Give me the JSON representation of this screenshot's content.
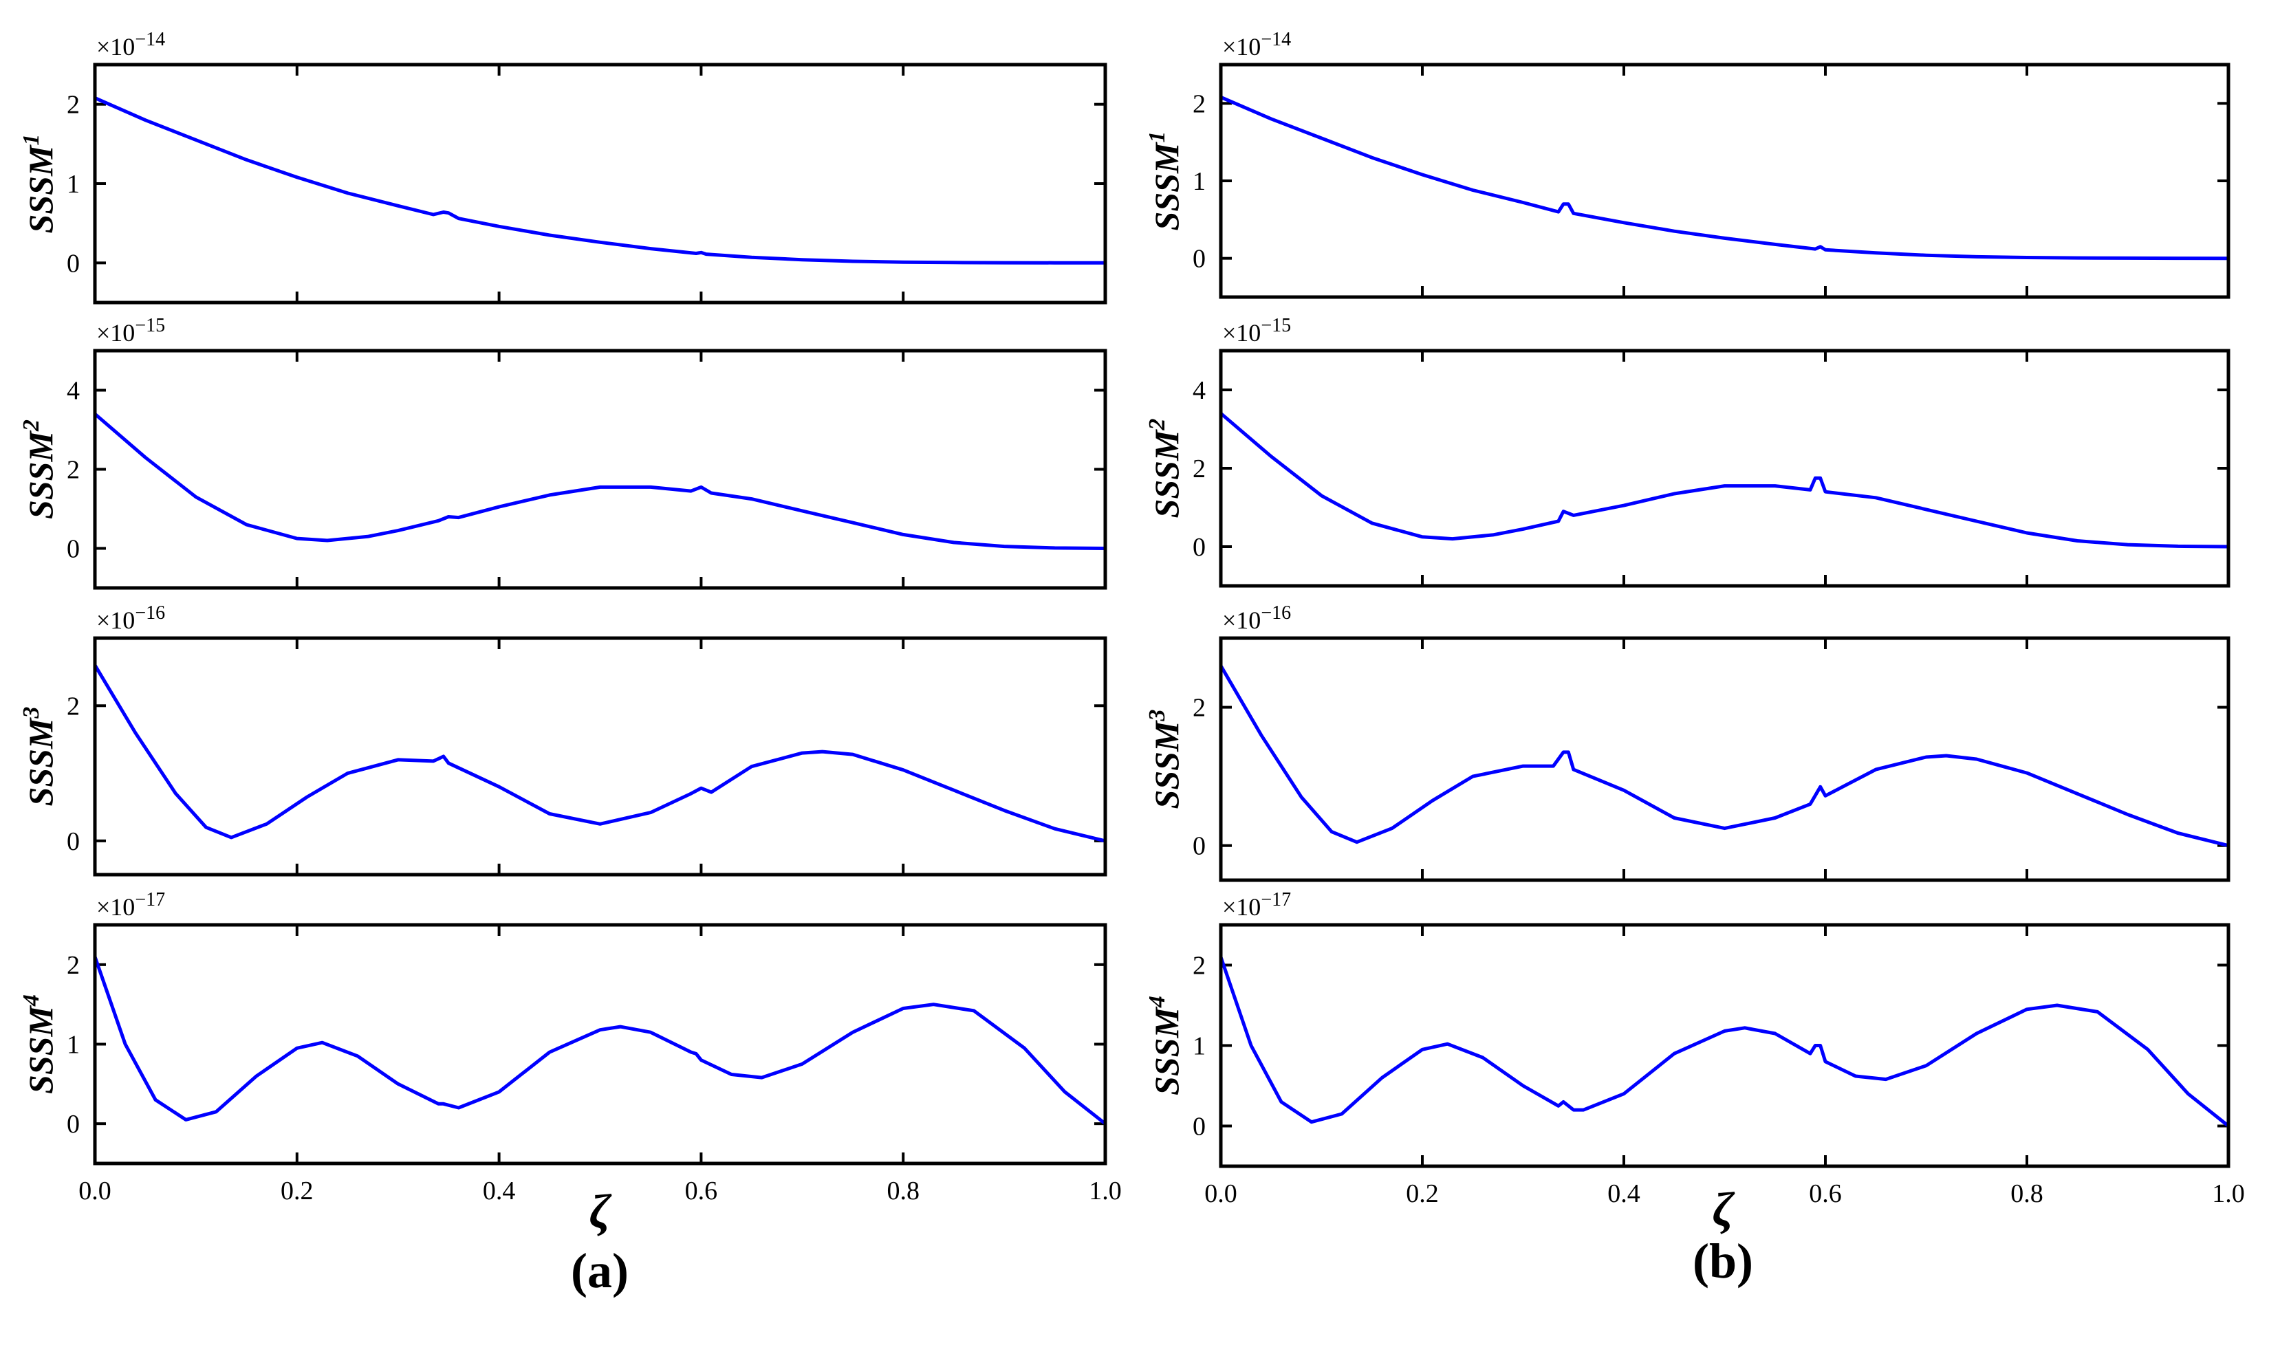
{
  "chart_data": [
    {
      "panel": "a",
      "panel_label": "(a)",
      "xlabel": "ζ",
      "subplots": [
        {
          "type": "line",
          "ylabel": "SSSM",
          "ylabel_sup": "1",
          "exponent": "×10",
          "exponent_sup": "−14",
          "xlim": [
            0,
            1
          ],
          "ylim": [
            -0.5,
            2.5
          ],
          "yticks": [
            0,
            1,
            2
          ],
          "x": [
            0,
            0.05,
            0.1,
            0.15,
            0.2,
            0.25,
            0.3,
            0.335,
            0.345,
            0.35,
            0.36,
            0.4,
            0.45,
            0.5,
            0.55,
            0.595,
            0.6,
            0.605,
            0.65,
            0.7,
            0.75,
            0.8,
            0.85,
            0.9,
            0.95,
            1.0
          ],
          "y": [
            2.08,
            1.8,
            1.55,
            1.3,
            1.08,
            0.88,
            0.72,
            0.61,
            0.64,
            0.63,
            0.56,
            0.46,
            0.35,
            0.26,
            0.18,
            0.12,
            0.13,
            0.11,
            0.07,
            0.04,
            0.02,
            0.01,
            0.005,
            0.002,
            0.001,
            0
          ]
        },
        {
          "type": "line",
          "ylabel": "SSSM",
          "ylabel_sup": "2",
          "exponent": "×10",
          "exponent_sup": "−15",
          "xlim": [
            0,
            1
          ],
          "ylim": [
            -1,
            5
          ],
          "yticks": [
            0,
            2,
            4
          ],
          "x": [
            0,
            0.05,
            0.1,
            0.15,
            0.2,
            0.23,
            0.27,
            0.3,
            0.34,
            0.35,
            0.36,
            0.4,
            0.45,
            0.5,
            0.55,
            0.59,
            0.6,
            0.61,
            0.65,
            0.7,
            0.75,
            0.8,
            0.85,
            0.9,
            0.95,
            1.0
          ],
          "y": [
            3.4,
            2.3,
            1.3,
            0.6,
            0.25,
            0.2,
            0.3,
            0.45,
            0.7,
            0.8,
            0.78,
            1.05,
            1.35,
            1.55,
            1.55,
            1.45,
            1.55,
            1.4,
            1.25,
            0.95,
            0.65,
            0.35,
            0.15,
            0.05,
            0.01,
            0
          ]
        },
        {
          "type": "line",
          "ylabel": "SSSM",
          "ylabel_sup": "3",
          "exponent": "×10",
          "exponent_sup": "−16",
          "xlim": [
            0,
            1
          ],
          "ylim": [
            -0.5,
            3
          ],
          "yticks": [
            0,
            2
          ],
          "x": [
            0,
            0.04,
            0.08,
            0.11,
            0.135,
            0.17,
            0.21,
            0.25,
            0.3,
            0.335,
            0.345,
            0.35,
            0.36,
            0.4,
            0.45,
            0.5,
            0.55,
            0.59,
            0.6,
            0.61,
            0.65,
            0.7,
            0.72,
            0.75,
            0.8,
            0.85,
            0.9,
            0.95,
            1.0
          ],
          "y": [
            2.6,
            1.6,
            0.7,
            0.2,
            0.05,
            0.25,
            0.65,
            1.0,
            1.2,
            1.18,
            1.25,
            1.15,
            1.08,
            0.8,
            0.4,
            0.25,
            0.42,
            0.7,
            0.78,
            0.72,
            1.1,
            1.3,
            1.32,
            1.28,
            1.05,
            0.75,
            0.45,
            0.18,
            0
          ]
        },
        {
          "type": "line",
          "ylabel": "SSSM",
          "ylabel_sup": "4",
          "exponent": "×10",
          "exponent_sup": "−17",
          "xlim": [
            0,
            1
          ],
          "ylim": [
            -0.5,
            2.5
          ],
          "yticks": [
            0,
            1,
            2
          ],
          "x": [
            0,
            0.03,
            0.06,
            0.09,
            0.12,
            0.16,
            0.2,
            0.225,
            0.26,
            0.3,
            0.34,
            0.345,
            0.36,
            0.4,
            0.45,
            0.5,
            0.52,
            0.55,
            0.59,
            0.595,
            0.6,
            0.63,
            0.66,
            0.7,
            0.75,
            0.8,
            0.83,
            0.87,
            0.92,
            0.96,
            1.0
          ],
          "y": [
            2.1,
            1.0,
            0.3,
            0.05,
            0.15,
            0.6,
            0.95,
            1.02,
            0.85,
            0.5,
            0.25,
            0.25,
            0.2,
            0.4,
            0.9,
            1.18,
            1.22,
            1.15,
            0.9,
            0.88,
            0.8,
            0.62,
            0.58,
            0.75,
            1.15,
            1.45,
            1.5,
            1.42,
            0.95,
            0.4,
            0
          ]
        }
      ],
      "xticks": [
        0.0,
        0.2,
        0.4,
        0.6,
        0.8,
        1.0
      ],
      "xtick_labels": [
        "0.0",
        "0.2",
        "0.4",
        "0.6",
        "0.8",
        "1.0"
      ],
      "color": "#0000ff"
    },
    {
      "panel": "b",
      "panel_label": "(b)",
      "xlabel": "ζ",
      "subplots": [
        {
          "type": "line",
          "ylabel": "SSSM",
          "ylabel_sup": "1",
          "exponent": "×10",
          "exponent_sup": "−14",
          "xlim": [
            0,
            1
          ],
          "ylim": [
            -0.5,
            2.5
          ],
          "yticks": [
            0,
            1,
            2
          ],
          "x": [
            0,
            0.05,
            0.1,
            0.15,
            0.2,
            0.25,
            0.3,
            0.335,
            0.34,
            0.345,
            0.35,
            0.4,
            0.45,
            0.5,
            0.55,
            0.59,
            0.595,
            0.6,
            0.65,
            0.7,
            0.75,
            0.8,
            0.85,
            0.9,
            0.95,
            1.0
          ],
          "y": [
            2.08,
            1.8,
            1.55,
            1.3,
            1.08,
            0.88,
            0.72,
            0.6,
            0.7,
            0.7,
            0.58,
            0.46,
            0.35,
            0.26,
            0.18,
            0.12,
            0.15,
            0.11,
            0.07,
            0.04,
            0.02,
            0.01,
            0.005,
            0.002,
            0.001,
            0
          ]
        },
        {
          "type": "line",
          "ylabel": "SSSM",
          "ylabel_sup": "2",
          "exponent": "×10",
          "exponent_sup": "−15",
          "xlim": [
            0,
            1
          ],
          "ylim": [
            -1,
            5
          ],
          "yticks": [
            0,
            2,
            4
          ],
          "x": [
            0,
            0.05,
            0.1,
            0.15,
            0.2,
            0.23,
            0.27,
            0.3,
            0.335,
            0.34,
            0.35,
            0.4,
            0.45,
            0.5,
            0.55,
            0.585,
            0.59,
            0.595,
            0.6,
            0.65,
            0.7,
            0.75,
            0.8,
            0.85,
            0.9,
            0.95,
            1.0
          ],
          "y": [
            3.4,
            2.3,
            1.3,
            0.6,
            0.25,
            0.2,
            0.3,
            0.45,
            0.65,
            0.9,
            0.8,
            1.05,
            1.35,
            1.55,
            1.55,
            1.45,
            1.75,
            1.75,
            1.4,
            1.25,
            0.95,
            0.65,
            0.35,
            0.15,
            0.05,
            0.01,
            0
          ]
        },
        {
          "type": "line",
          "ylabel": "SSSM",
          "ylabel_sup": "3",
          "exponent": "×10",
          "exponent_sup": "−16",
          "xlim": [
            0,
            1
          ],
          "ylim": [
            -0.5,
            3
          ],
          "yticks": [
            0,
            2
          ],
          "x": [
            0,
            0.04,
            0.08,
            0.11,
            0.135,
            0.17,
            0.21,
            0.25,
            0.3,
            0.33,
            0.34,
            0.345,
            0.35,
            0.4,
            0.45,
            0.5,
            0.55,
            0.585,
            0.595,
            0.6,
            0.65,
            0.7,
            0.72,
            0.75,
            0.8,
            0.85,
            0.9,
            0.95,
            1.0
          ],
          "y": [
            2.6,
            1.6,
            0.7,
            0.2,
            0.05,
            0.25,
            0.65,
            1.0,
            1.15,
            1.15,
            1.35,
            1.35,
            1.1,
            0.8,
            0.4,
            0.25,
            0.4,
            0.6,
            0.85,
            0.72,
            1.1,
            1.28,
            1.3,
            1.25,
            1.05,
            0.75,
            0.45,
            0.18,
            0
          ]
        },
        {
          "type": "line",
          "ylabel": "SSSM",
          "ylabel_sup": "4",
          "exponent": "×10",
          "exponent_sup": "−17",
          "xlim": [
            0,
            1
          ],
          "ylim": [
            -0.5,
            2.5
          ],
          "yticks": [
            0,
            1,
            2
          ],
          "x": [
            0,
            0.03,
            0.06,
            0.09,
            0.12,
            0.16,
            0.2,
            0.225,
            0.26,
            0.3,
            0.335,
            0.34,
            0.35,
            0.36,
            0.4,
            0.45,
            0.5,
            0.52,
            0.55,
            0.585,
            0.59,
            0.595,
            0.6,
            0.63,
            0.66,
            0.7,
            0.75,
            0.8,
            0.83,
            0.87,
            0.92,
            0.96,
            1.0
          ],
          "y": [
            2.1,
            1.0,
            0.3,
            0.05,
            0.15,
            0.6,
            0.95,
            1.02,
            0.85,
            0.5,
            0.25,
            0.3,
            0.2,
            0.2,
            0.4,
            0.9,
            1.18,
            1.22,
            1.15,
            0.9,
            1.0,
            1.0,
            0.8,
            0.62,
            0.58,
            0.75,
            1.15,
            1.45,
            1.5,
            1.42,
            0.95,
            0.4,
            0
          ]
        }
      ],
      "xticks": [
        0.0,
        0.2,
        0.4,
        0.6,
        0.8,
        1.0
      ],
      "xtick_labels": [
        "0.0",
        "0.2",
        "0.4",
        "0.6",
        "0.8",
        "1.0"
      ],
      "color": "#0000ff"
    }
  ]
}
